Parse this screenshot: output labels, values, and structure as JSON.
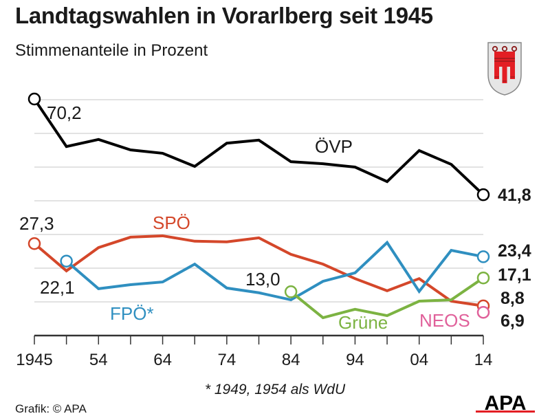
{
  "header": {
    "title": "Landtagswahlen in Vorarlberg seit 1945",
    "subtitle": "Stimmenanteile in Prozent"
  },
  "footer": {
    "footnote": "* 1949, 1954 als WdU",
    "credit": "Grafik: © APA",
    "logo": "APA"
  },
  "icons": {
    "crest": "vorarlberg-coat-of-arms-icon",
    "logo": "apa-logo-icon"
  },
  "chart_data": {
    "type": "line",
    "title": "Landtagswahlen in Vorarlberg seit 1945",
    "subtitle": "Stimmenanteile in Prozent",
    "xlabel": "",
    "ylabel": "",
    "ylim": [
      0,
      70
    ],
    "grid": true,
    "x": [
      1945,
      1949,
      1954,
      1959,
      1964,
      1969,
      1974,
      1979,
      1984,
      1989,
      1994,
      1999,
      2004,
      2009,
      2014
    ],
    "x_tick_labels": [
      {
        "x": 1945,
        "label": "1945"
      },
      {
        "x": 1954,
        "label": "54"
      },
      {
        "x": 1964,
        "label": "64"
      },
      {
        "x": 1974,
        "label": "74"
      },
      {
        "x": 1984,
        "label": "84"
      },
      {
        "x": 1994,
        "label": "94"
      },
      {
        "x": 2004,
        "label": "04"
      },
      {
        "x": 2014,
        "label": "14"
      }
    ],
    "gridlines": [
      10,
      20,
      30,
      40,
      50,
      60,
      70
    ],
    "series": [
      {
        "name": "ÖVP",
        "color": "#000000",
        "x": [
          1945,
          1949,
          1954,
          1959,
          1964,
          1969,
          1974,
          1979,
          1984,
          1989,
          1994,
          1999,
          2004,
          2009,
          2014
        ],
        "values": [
          70.2,
          56.1,
          58.2,
          55.1,
          54.1,
          50.2,
          57.1,
          58.0,
          51.6,
          51.0,
          50.0,
          45.7,
          54.9,
          50.8,
          41.8
        ],
        "label": "ÖVP",
        "start_label": "70,2",
        "end_label": "41,8"
      },
      {
        "name": "SPÖ",
        "color": "#d4472a",
        "x": [
          1945,
          1949,
          1954,
          1959,
          1964,
          1969,
          1974,
          1979,
          1984,
          1989,
          1994,
          1999,
          2004,
          2009,
          2014
        ],
        "values": [
          27.3,
          19.2,
          26.1,
          29.2,
          29.6,
          28.0,
          27.8,
          29.0,
          24.1,
          21.2,
          16.9,
          13.3,
          16.9,
          10.2,
          8.8
        ],
        "label": "SPÖ",
        "start_label": "27,3",
        "end_label": "8,8"
      },
      {
        "name": "FPÖ*",
        "color": "#2f8fc0",
        "x": [
          1949,
          1954,
          1959,
          1964,
          1969,
          1974,
          1979,
          1984,
          1989,
          1994,
          1999,
          2004,
          2009,
          2014
        ],
        "values": [
          22.1,
          13.9,
          15.1,
          15.9,
          21.2,
          14.1,
          12.7,
          10.6,
          16.1,
          18.6,
          27.6,
          13.1,
          25.3,
          23.4
        ],
        "label": "FPÖ*",
        "start_label": "22,1",
        "end_label": "23,4"
      },
      {
        "name": "Grüne",
        "color": "#7cb342",
        "x": [
          1984,
          1989,
          1994,
          1999,
          2004,
          2009,
          2014
        ],
        "values": [
          13.0,
          5.3,
          7.8,
          5.9,
          10.2,
          10.6,
          17.1
        ],
        "label": "Grüne",
        "start_label": "13,0",
        "end_label": "17,1"
      },
      {
        "name": "NEOS",
        "color": "#e0609a",
        "x": [
          2014
        ],
        "values": [
          6.9
        ],
        "label": "NEOS",
        "end_label": "6,9"
      }
    ],
    "annotations": [
      "* 1949, 1954 als WdU"
    ]
  }
}
